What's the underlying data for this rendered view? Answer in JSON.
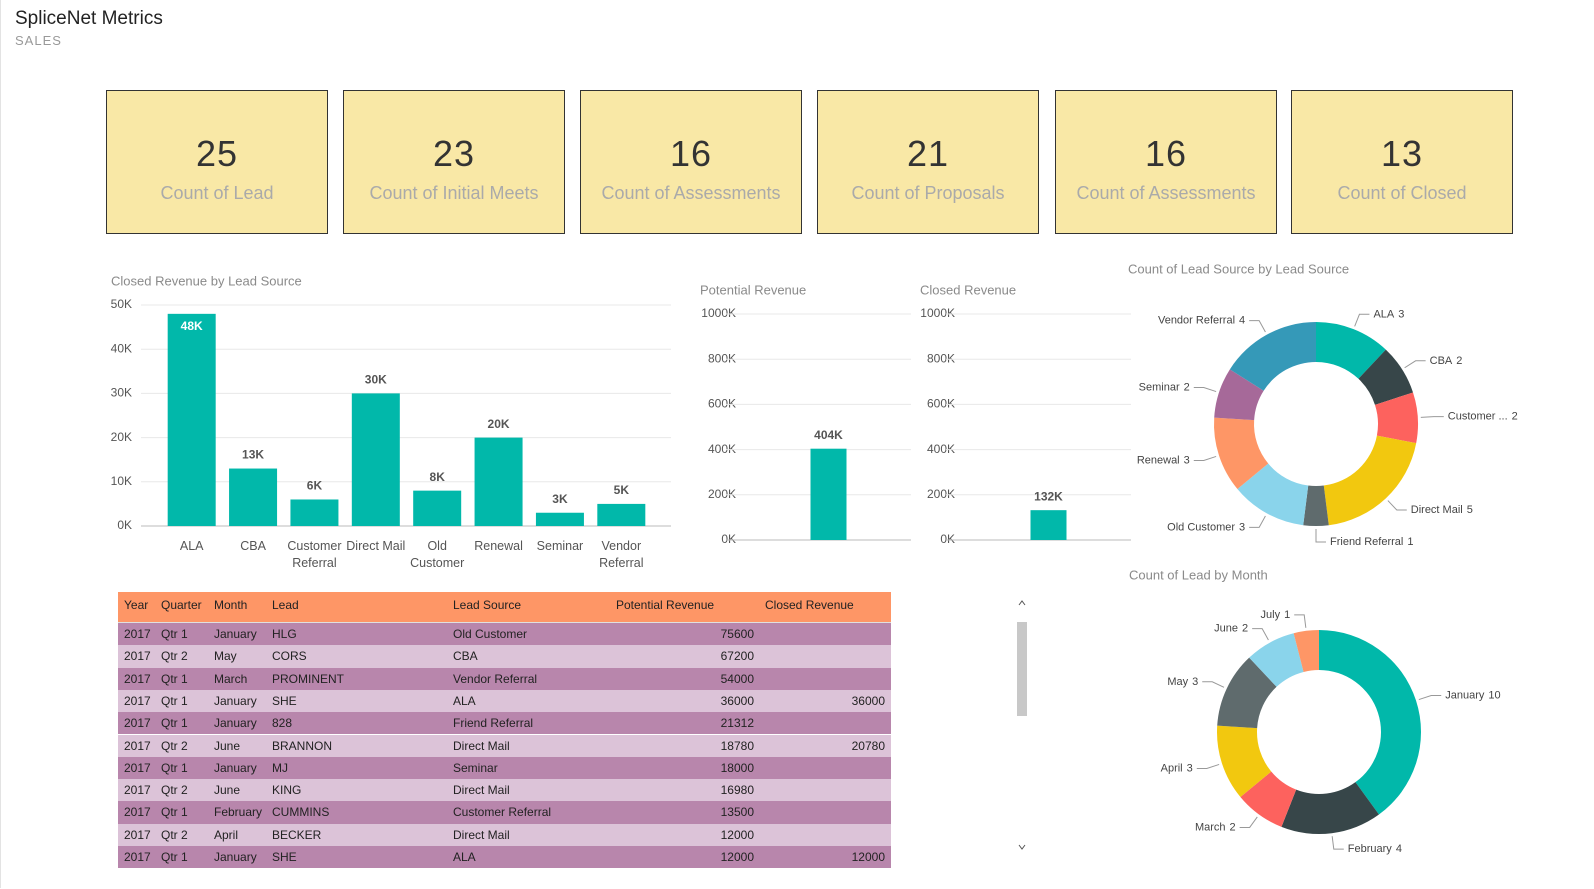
{
  "header": {
    "title": "SpliceNet Metrics",
    "subtitle": "SALES"
  },
  "cards": [
    {
      "value": 25,
      "label": "Count of Lead"
    },
    {
      "value": 23,
      "label": "Count of Initial Meets"
    },
    {
      "value": 16,
      "label": "Count of Assessments"
    },
    {
      "value": 21,
      "label": "Count of Proposals"
    },
    {
      "value": 16,
      "label": "Count of Assessments"
    },
    {
      "value": 13,
      "label": "Count of Closed"
    }
  ],
  "chart_data": [
    {
      "type": "bar",
      "title": "Closed Revenue by Lead Source",
      "categories": [
        "ALA",
        "CBA",
        "Customer Referral",
        "Direct Mail",
        "Old Customer",
        "Renewal",
        "Seminar",
        "Vendor Referral"
      ],
      "values": [
        48000,
        13000,
        6000,
        30000,
        8000,
        20000,
        3000,
        5000
      ],
      "value_labels": [
        "48K",
        "13K",
        "6K",
        "30K",
        "8K",
        "20K",
        "3K",
        "5K"
      ],
      "color": "#01b8aa",
      "ylim": [
        0,
        50000
      ],
      "yticks": [
        {
          "value": 0,
          "label": "0K"
        },
        {
          "value": 10000,
          "label": "10K"
        },
        {
          "value": 20000,
          "label": "20K"
        },
        {
          "value": 30000,
          "label": "30K"
        },
        {
          "value": 40000,
          "label": "40K"
        },
        {
          "value": 50000,
          "label": "50K"
        }
      ],
      "grid": true
    },
    {
      "type": "bar",
      "title": "Potential Revenue",
      "categories": [
        null
      ],
      "values": [
        404000
      ],
      "value_labels": [
        "404K"
      ],
      "color": "#01b8aa",
      "ylim": [
        0,
        1000000
      ],
      "yticks": [
        {
          "value": 0,
          "label": "0K"
        },
        {
          "value": 200000,
          "label": "200K"
        },
        {
          "value": 400000,
          "label": "400K"
        },
        {
          "value": 600000,
          "label": "600K"
        },
        {
          "value": 800000,
          "label": "800K"
        },
        {
          "value": 1000000,
          "label": "1000K"
        }
      ],
      "grid": true
    },
    {
      "type": "bar",
      "title": "Closed Revenue",
      "categories": [
        null
      ],
      "values": [
        132000
      ],
      "value_labels": [
        "132K"
      ],
      "color": "#01b8aa",
      "ylim": [
        0,
        1000000
      ],
      "yticks": [
        {
          "value": 0,
          "label": "0K"
        },
        {
          "value": 200000,
          "label": "200K"
        },
        {
          "value": 400000,
          "label": "400K"
        },
        {
          "value": 600000,
          "label": "600K"
        },
        {
          "value": 800000,
          "label": "800K"
        },
        {
          "value": 1000000,
          "label": "1000K"
        }
      ],
      "grid": true
    },
    {
      "type": "donut",
      "title": "Count of Lead Source by Lead Source",
      "categories": [
        "ALA",
        "CBA",
        "Customer ...",
        "Direct Mail",
        "Friend Referral",
        "Old Customer",
        "Renewal",
        "Seminar",
        "Vendor Referral"
      ],
      "values": [
        3,
        2,
        2,
        5,
        1,
        3,
        3,
        2,
        4
      ],
      "colors": [
        "#01b8aa",
        "#374649",
        "#fd625e",
        "#f2c80f",
        "#5f6b6d",
        "#8ad4eb",
        "#fe9666",
        "#a66999",
        "#3599b8"
      ]
    },
    {
      "type": "donut",
      "title": "Count of Lead by Month",
      "categories": [
        "January",
        "February",
        "March",
        "April",
        "May",
        "June",
        "July"
      ],
      "values": [
        10,
        4,
        2,
        3,
        3,
        2,
        1
      ],
      "colors": [
        "#01b8aa",
        "#374649",
        "#fd625e",
        "#f2c80f",
        "#5f6b6d",
        "#8ad4eb",
        "#fe9666"
      ]
    }
  ],
  "table": {
    "columns": [
      "Year",
      "Quarter",
      "Month",
      "Lead",
      "Lead Source",
      "Potential Revenue",
      "Closed Revenue"
    ],
    "rows": [
      [
        2017,
        "Qtr 1",
        "January",
        "HLG",
        "Old Customer",
        75600,
        null
      ],
      [
        2017,
        "Qtr 2",
        "May",
        "CORS",
        "CBA",
        67200,
        null
      ],
      [
        2017,
        "Qtr 1",
        "March",
        "PROMINENT",
        "Vendor Referral",
        54000,
        null
      ],
      [
        2017,
        "Qtr 1",
        "January",
        "SHE",
        "ALA",
        36000,
        36000
      ],
      [
        2017,
        "Qtr 1",
        "January",
        "828",
        "Friend Referral",
        21312,
        null
      ],
      [
        2017,
        "Qtr 2",
        "June",
        "BRANNON",
        "Direct Mail",
        18780,
        20780
      ],
      [
        2017,
        "Qtr 1",
        "January",
        "MJ",
        "Seminar",
        18000,
        null
      ],
      [
        2017,
        "Qtr 2",
        "June",
        "KING",
        "Direct Mail",
        16980,
        null
      ],
      [
        2017,
        "Qtr 1",
        "February",
        "CUMMINS",
        "Customer Referral",
        13500,
        null
      ],
      [
        2017,
        "Qtr 2",
        "April",
        "BECKER",
        "Direct Mail",
        12000,
        null
      ],
      [
        2017,
        "Qtr 1",
        "January",
        "SHE",
        "ALA",
        12000,
        12000
      ]
    ]
  }
}
